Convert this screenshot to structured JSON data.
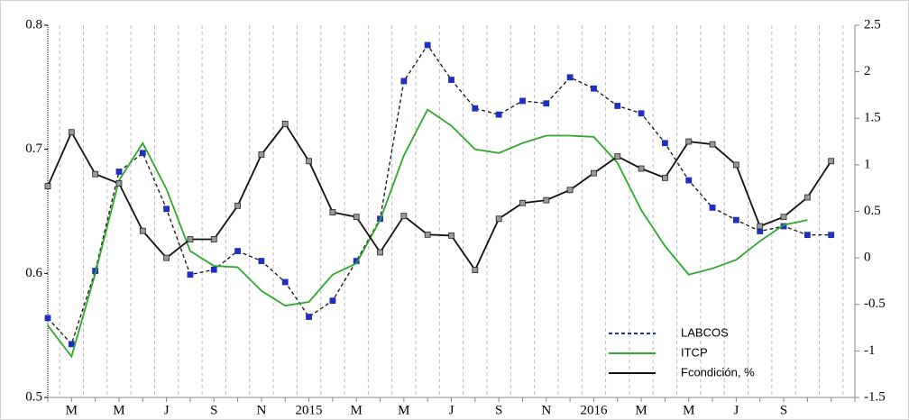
{
  "chart_data": {
    "type": "line",
    "categories": [
      null,
      "M",
      null,
      "M",
      null,
      "J",
      null,
      "S",
      null,
      "N",
      null,
      "2015",
      null,
      "M",
      null,
      "M",
      null,
      "J",
      null,
      "S",
      null,
      "N",
      null,
      "2016",
      null,
      "M",
      null,
      "M",
      null,
      "J",
      null,
      "S",
      null,
      null
    ],
    "ylim": [
      0.5,
      0.8
    ],
    "yticks": [
      0.5,
      0.6,
      0.7,
      0.8
    ],
    "y2lim": [
      -1.5,
      2.5
    ],
    "y2ticks": [
      -1.5,
      -1,
      -0.5,
      0,
      0.5,
      1,
      1.5,
      2,
      2.5
    ],
    "grid": true,
    "legend": "lower right",
    "series": [
      {
        "name": "LABCOS",
        "color": "#1f2fc0",
        "dash": true,
        "marker": "square",
        "values": [
          0.564,
          0.543,
          0.602,
          0.682,
          0.697,
          0.652,
          0.599,
          0.603,
          0.618,
          0.61,
          0.593,
          0.565,
          0.578,
          0.61,
          0.644,
          0.755,
          0.784,
          0.756,
          0.733,
          0.728,
          0.739,
          0.737,
          0.758,
          0.749,
          0.735,
          0.729,
          0.705,
          0.675,
          0.653,
          0.643,
          0.634,
          0.638,
          0.631,
          0.631
        ]
      },
      {
        "name": "ITCP",
        "color": "#2ea82e",
        "dash": false,
        "marker": "none",
        "values": [
          0.558,
          0.533,
          0.6,
          0.675,
          0.705,
          0.668,
          0.618,
          0.606,
          0.605,
          0.586,
          0.574,
          0.577,
          0.599,
          0.608,
          0.643,
          0.695,
          0.732,
          0.719,
          0.7,
          0.697,
          0.705,
          0.711,
          0.711,
          0.71,
          0.689,
          0.651,
          0.622,
          0.599,
          0.604,
          0.611,
          0.626,
          0.639,
          0.643,
          null
        ]
      },
      {
        "name": "Fcondición, %",
        "color": "#111111",
        "dash": false,
        "marker": "square",
        "axis": "y2",
        "values": [
          0.77,
          1.35,
          0.9,
          0.8,
          0.29,
          0.0,
          0.2,
          0.2,
          0.56,
          1.11,
          1.44,
          1.04,
          0.49,
          0.44,
          0.06,
          0.45,
          0.25,
          0.24,
          -0.13,
          0.42,
          0.59,
          0.62,
          0.73,
          0.91,
          1.09,
          0.96,
          0.86,
          1.25,
          1.22,
          1.0,
          0.34,
          0.44,
          0.65,
          1.04
        ]
      }
    ]
  }
}
